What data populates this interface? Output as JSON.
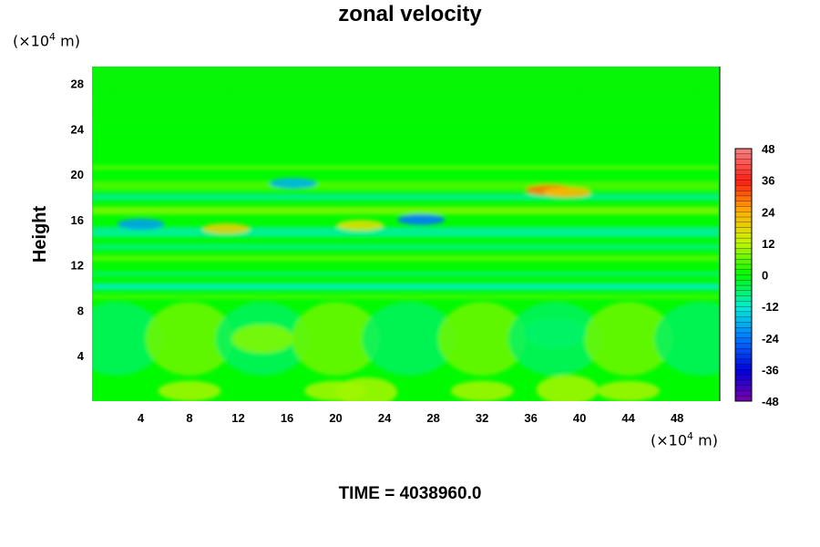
{
  "chart_data": {
    "type": "heatmap",
    "title": "zonal velocity",
    "ylabel": "Height",
    "x_unit": {
      "prefix": "(×10",
      "exp": "4",
      "suffix": " m)"
    },
    "y_unit": {
      "prefix": "(×10",
      "exp": "4",
      "suffix": " m)"
    },
    "xlim": [
      0,
      51.5
    ],
    "ylim": [
      0,
      29.5
    ],
    "x_ticks": [
      4,
      8,
      12,
      16,
      20,
      24,
      28,
      32,
      36,
      40,
      44,
      48
    ],
    "y_ticks": [
      4,
      8,
      12,
      16,
      20,
      24,
      28
    ],
    "colorbar": {
      "min": -48,
      "max": 48,
      "ticks": [
        48,
        36,
        24,
        12,
        0,
        -12,
        -24,
        -36,
        -48
      ]
    },
    "field_description": "Upper region (y > 21) near 0 (green); banded perturbations of about ±20 between y 9–21 with local extremes near +30 at (36–40, 18.5) and −25 at (26–28, 16) and (3–5, 15.5); lower region (y < 9) shows cells alternating roughly ±8 with period ~12 in x.",
    "features": [
      {
        "x": 37.5,
        "y": 18.6,
        "value": 28
      },
      {
        "x": 39,
        "y": 18.4,
        "value": 22
      },
      {
        "x": 27,
        "y": 16,
        "value": -24
      },
      {
        "x": 4,
        "y": 15.6,
        "value": -20
      },
      {
        "x": 16.5,
        "y": 19.2,
        "value": -18
      },
      {
        "x": 11,
        "y": 15.2,
        "value": 18
      },
      {
        "x": 22,
        "y": 15.5,
        "value": 16
      },
      {
        "x": 14,
        "y": 5.5,
        "value": 8
      },
      {
        "x": 22.5,
        "y": 0.8,
        "value": 10
      },
      {
        "x": 39,
        "y": 1,
        "value": 10
      },
      {
        "x": 38,
        "y": 6,
        "value": -6
      }
    ]
  },
  "footer": {
    "time_label": "TIME = 4038960.0"
  }
}
